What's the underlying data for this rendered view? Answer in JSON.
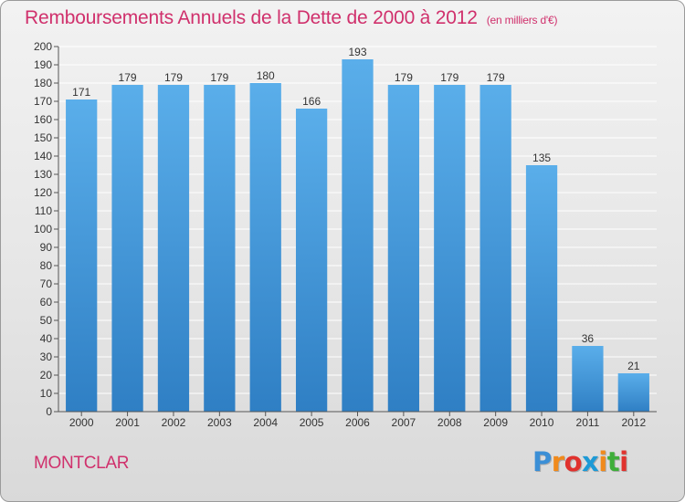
{
  "chart_data": {
    "type": "bar",
    "title": "Remboursements Annuels de la Dette de 2000 à 2012",
    "subtitle": "(en milliers d'€)",
    "categories": [
      "2000",
      "2001",
      "2002",
      "2003",
      "2004",
      "2005",
      "2006",
      "2007",
      "2008",
      "2009",
      "2010",
      "2011",
      "2012"
    ],
    "values": [
      171,
      179,
      179,
      179,
      180,
      166,
      193,
      179,
      179,
      179,
      135,
      36,
      21
    ],
    "xlabel": "",
    "ylabel": "",
    "ylim": [
      0,
      200
    ],
    "ytick_step": 10,
    "grid": true,
    "legend": "none",
    "bar_color": "#4f9fde"
  },
  "location": "MONTCLAR",
  "logo": {
    "text": "Proxiti",
    "letters": [
      "P",
      "r",
      "o",
      "x",
      "i",
      "t",
      "i"
    ],
    "colors": [
      "#3b8fd6",
      "#f08a1c",
      "#e0322e",
      "#1d9ad6",
      "#f08a1c",
      "#3fae3a",
      "#e0322e"
    ]
  }
}
